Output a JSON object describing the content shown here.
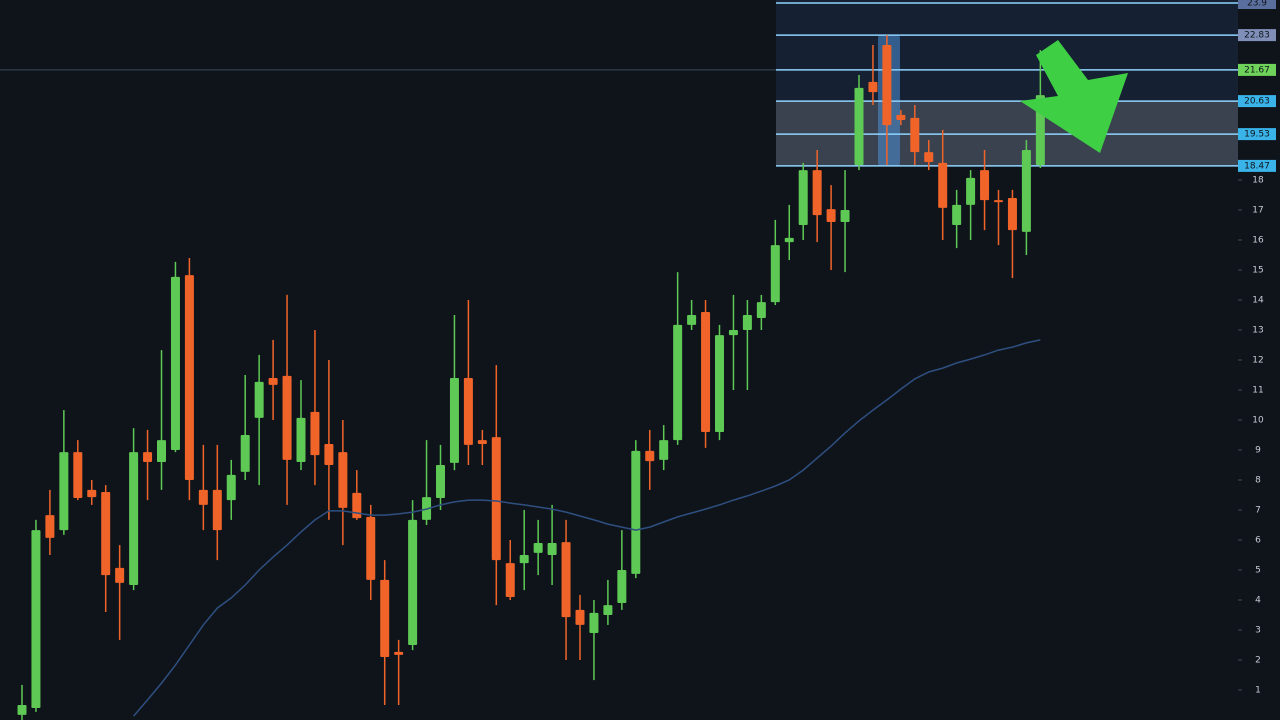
{
  "chart_data": {
    "type": "candlestick",
    "open": [
      0.17,
      0.4,
      6.83,
      6.33,
      8.93,
      7.67,
      7.6,
      5.07,
      4.5,
      8.93,
      8.6,
      9,
      14.83,
      7.67,
      7.67,
      7.33,
      8.27,
      10.07,
      11.4,
      11.47,
      8.6,
      10.27,
      9.2,
      8.93,
      7.57,
      6.77,
      4.67,
      2.27,
      2.5,
      6.67,
      7.4,
      8.57,
      11.4,
      9.33,
      9.43,
      5.23,
      5.23,
      5.57,
      5.5,
      5.93,
      3.67,
      2.9,
      3.5,
      3.9,
      4.87,
      8.97,
      8.67,
      9.33,
      13.17,
      13.6,
      9.6,
      12.83,
      13,
      13.4,
      13.93,
      15.93,
      16.5,
      18.33,
      17.03,
      16.6,
      18.5,
      21.27,
      22.5,
      20.17,
      20.07,
      18.93,
      18.57,
      16.5,
      17.17,
      18.33,
      17.33,
      17.4,
      16.27,
      18.5
    ],
    "high": [
      1.17,
      6.67,
      7.67,
      10.33,
      9.33,
      8,
      7.83,
      5.83,
      9.73,
      9.67,
      12.33,
      15.27,
      15.4,
      9.17,
      9.17,
      8.67,
      11.5,
      12.17,
      12.67,
      14.17,
      11.33,
      13,
      12,
      10,
      8.33,
      7.17,
      5.33,
      2.67,
      7.33,
      9.33,
      9.17,
      13.5,
      14,
      9.67,
      11.83,
      6,
      7,
      6.67,
      7.17,
      6.67,
      4.17,
      4,
      4.67,
      6.33,
      9.33,
      9.67,
      9.83,
      14.93,
      14,
      14,
      13.17,
      14.17,
      14,
      14.17,
      16.67,
      17.17,
      18.57,
      19,
      17.83,
      18.33,
      21.5,
      22.5,
      22.83,
      20.33,
      20.5,
      19.33,
      19.67,
      17.67,
      18.33,
      19,
      17.67,
      17.67,
      19.33,
      22.33
    ],
    "low": [
      0,
      0.27,
      5.5,
      6.17,
      7.33,
      7.17,
      3.6,
      2.67,
      4.33,
      7.33,
      7.67,
      8.93,
      7.33,
      6.33,
      5.33,
      6.67,
      8,
      7.83,
      10,
      7.17,
      8.33,
      7.83,
      6.67,
      5.83,
      6.67,
      4,
      0.5,
      0.5,
      2.33,
      6.5,
      7,
      8.33,
      8.5,
      8.5,
      3.83,
      4,
      4.33,
      4.83,
      4.5,
      2,
      2,
      1.33,
      3.17,
      3.67,
      4.73,
      7.67,
      8.33,
      9.17,
      13,
      9.07,
      9.33,
      11,
      11,
      13,
      13.83,
      15.33,
      16,
      15.93,
      15,
      14.93,
      18.33,
      20.5,
      18.5,
      19.83,
      18.5,
      18.33,
      16,
      15.73,
      16,
      16.33,
      15.83,
      14.73,
      15.5,
      18.4
    ],
    "close": [
      0.5,
      6.33,
      6.07,
      8.93,
      7.4,
      7.43,
      4.83,
      4.57,
      8.93,
      8.6,
      9.33,
      14.77,
      8,
      7.17,
      6.33,
      8.17,
      9.5,
      11.27,
      11.17,
      8.67,
      10.07,
      8.83,
      8.5,
      7.07,
      6.73,
      4.67,
      2.1,
      2.17,
      6.67,
      7.43,
      8.5,
      11.4,
      9.17,
      9.2,
      5.33,
      4.1,
      5.5,
      5.9,
      5.9,
      3.43,
      3.17,
      3.57,
      3.83,
      5,
      8.97,
      8.63,
      9.33,
      13.17,
      13.5,
      9.6,
      12.83,
      13,
      13.5,
      13.93,
      15.83,
      16.07,
      18.33,
      16.83,
      16.6,
      17,
      21.07,
      20.93,
      19.83,
      20,
      18.93,
      18.6,
      17.07,
      17.17,
      18.07,
      17.33,
      17.27,
      16.33,
      19,
      20.83
    ],
    "up_color": "#5fc955",
    "down_color": "#f0642a",
    "ma": {
      "color": "#2e4f80",
      "values": [
        null,
        null,
        null,
        null,
        null,
        null,
        null,
        null,
        0.13,
        0.67,
        1.23,
        1.83,
        2.5,
        3.17,
        3.73,
        4.07,
        4.5,
        5,
        5.43,
        5.83,
        6.27,
        6.67,
        6.97,
        6.97,
        6.9,
        6.83,
        6.83,
        6.87,
        6.93,
        7.03,
        7.17,
        7.27,
        7.33,
        7.33,
        7.3,
        7.23,
        7.17,
        7.1,
        7.03,
        6.93,
        6.8,
        6.67,
        6.53,
        6.43,
        6.33,
        6.43,
        6.6,
        6.77,
        6.9,
        7.03,
        7.17,
        7.33,
        7.47,
        7.63,
        7.8,
        8,
        8.33,
        8.73,
        9.13,
        9.57,
        9.97,
        10.33,
        10.67,
        11.03,
        11.37,
        11.6,
        11.73,
        11.9,
        12.03,
        12.17,
        12.33,
        12.43,
        12.57,
        12.67
      ]
    },
    "levels": [
      {
        "value": 23.9,
        "color": "#5a6f9e"
      },
      {
        "value": 22.83,
        "color": "#7f8fb8"
      },
      {
        "value": 21.67,
        "color": "#6fd35b"
      },
      {
        "value": 20.63,
        "color": "#39b3e8"
      },
      {
        "value": 19.53,
        "color": "#39b3e8"
      },
      {
        "value": 18.47,
        "color": "#39b3e8"
      }
    ],
    "ylim": [
      0,
      24
    ],
    "yticks": [
      1,
      2,
      3,
      4,
      5,
      6,
      7,
      8,
      9,
      10,
      11,
      12,
      13,
      14,
      15,
      16,
      17,
      18
    ]
  }
}
